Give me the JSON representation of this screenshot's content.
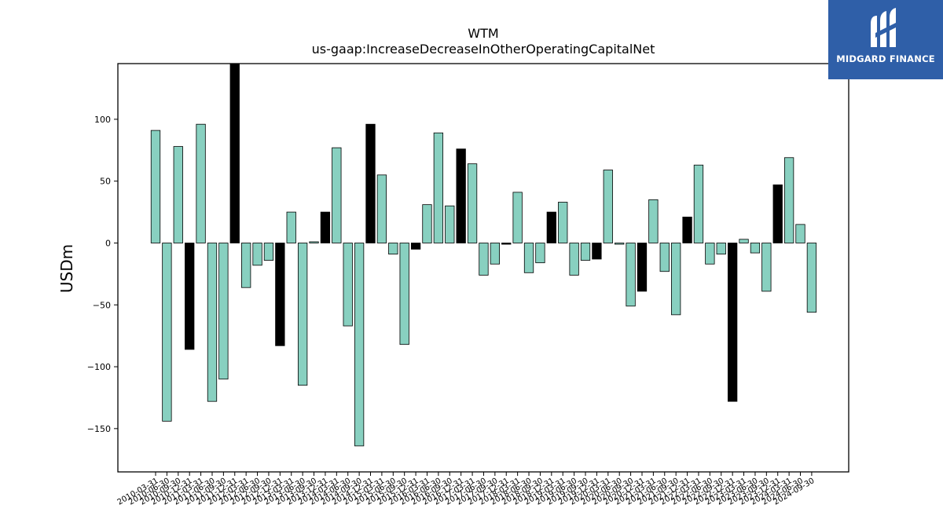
{
  "chart_data": {
    "type": "bar",
    "title": "WTM",
    "subtitle": "us-gaap:IncreaseDecreaseInOtherOperatingCapitalNet",
    "ylabel": "USDm",
    "xlabel": "",
    "ylim": [
      -185,
      145
    ],
    "yticks": [
      100,
      50,
      0,
      -50,
      -100,
      -150
    ],
    "grid": false,
    "legend": "none",
    "colors": {
      "normal": "#88d0c0",
      "highlight": "#000000",
      "edge": "#000000"
    },
    "categories": [
      "2010-03-31",
      "2010-06-30",
      "2010-09-30",
      "2010-12-31",
      "2011-03-31",
      "2011-06-30",
      "2011-09-30",
      "2011-12-31",
      "2012-03-31",
      "2012-06-30",
      "2012-09-30",
      "2012-12-31",
      "2013-03-31",
      "2013-06-30",
      "2013-09-30",
      "2013-12-31",
      "2014-03-31",
      "2014-06-30",
      "2014-09-30",
      "2014-12-31",
      "2015-03-31",
      "2015-06-30",
      "2015-09-30",
      "2015-12-31",
      "2016-03-31",
      "2016-06-30",
      "2016-09-30",
      "2016-12-31",
      "2017-03-31",
      "2017-06-30",
      "2017-09-30",
      "2017-12-31",
      "2018-03-31",
      "2018-06-30",
      "2018-09-30",
      "2018-12-31",
      "2019-03-31",
      "2019-06-30",
      "2019-09-30",
      "2019-12-31",
      "2020-03-31",
      "2020-06-30",
      "2020-09-30",
      "2020-12-31",
      "2021-03-31",
      "2021-06-30",
      "2021-09-30",
      "2021-12-31",
      "2022-03-31",
      "2022-06-30",
      "2022-09-30",
      "2022-12-31",
      "2023-03-31",
      "2023-06-30",
      "2023-09-30",
      "2023-12-31",
      "2024-03-31",
      "2024-06-30",
      "2024-09-30"
    ],
    "values": [
      91,
      -144,
      78,
      -86,
      96,
      -128,
      -110,
      145,
      -36,
      -18,
      -14,
      -83,
      25,
      -115,
      1,
      25,
      77,
      -67,
      -164,
      96,
      55,
      -9,
      -82,
      -5,
      31,
      89,
      30,
      76,
      64,
      -26,
      -17,
      -1,
      41,
      -24,
      -16,
      25,
      33,
      -26,
      -14,
      -13,
      59,
      -1,
      -51,
      -39,
      35,
      -23,
      -58,
      21,
      63,
      -17,
      -9,
      -128,
      3,
      -8,
      -39,
      47,
      69,
      15,
      -56
    ],
    "highlight": [
      false,
      false,
      false,
      true,
      false,
      false,
      false,
      true,
      false,
      false,
      false,
      true,
      false,
      false,
      false,
      true,
      false,
      false,
      false,
      true,
      false,
      false,
      false,
      true,
      false,
      false,
      false,
      true,
      false,
      false,
      false,
      true,
      false,
      false,
      false,
      true,
      false,
      false,
      false,
      true,
      false,
      false,
      false,
      true,
      false,
      false,
      false,
      true,
      false,
      false,
      false,
      true,
      false,
      false,
      false,
      true,
      false,
      false,
      false
    ]
  },
  "logo": {
    "text": "MIDGARD FINANCE",
    "icon": "midgard-logo-icon"
  }
}
